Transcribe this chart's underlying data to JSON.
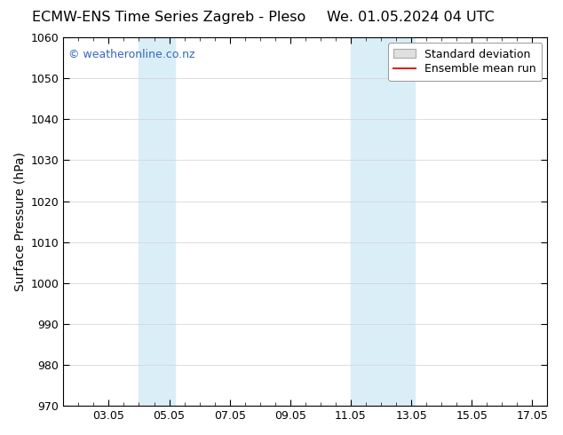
{
  "title_left": "ECMW-ENS Time Series Zagreb - Pleso",
  "title_right": "We. 01.05.2024 04 UTC",
  "ylabel": "Surface Pressure (hPa)",
  "ylim": [
    970,
    1060
  ],
  "yticks": [
    970,
    980,
    990,
    1000,
    1010,
    1020,
    1030,
    1040,
    1050,
    1060
  ],
  "xlim": [
    1.5,
    17.5
  ],
  "xtick_labels": [
    "03.05",
    "05.05",
    "07.05",
    "09.05",
    "11.05",
    "13.05",
    "15.05",
    "17.05"
  ],
  "xtick_positions": [
    3,
    5,
    7,
    9,
    11,
    13,
    15,
    17
  ],
  "watermark": "© weatheronline.co.nz",
  "watermark_color": "#3366bb",
  "shaded_regions": [
    {
      "x_start": 4.0,
      "x_end": 5.2,
      "color": "#daeef8"
    },
    {
      "x_start": 11.0,
      "x_end": 13.1,
      "color": "#daeef8"
    }
  ],
  "background_color": "#ffffff",
  "plot_bg_color": "#ffffff",
  "grid_color": "#d0d0d0",
  "legend_std_label": "Standard deviation",
  "legend_mean_label": "Ensemble mean run",
  "legend_std_facecolor": "#e0e0e0",
  "legend_std_edgecolor": "#aaaaaa",
  "legend_mean_color": "#dd2222",
  "title_fontsize": 11.5,
  "axis_label_fontsize": 10,
  "tick_fontsize": 9,
  "watermark_fontsize": 9,
  "minor_xtick_step": 1
}
